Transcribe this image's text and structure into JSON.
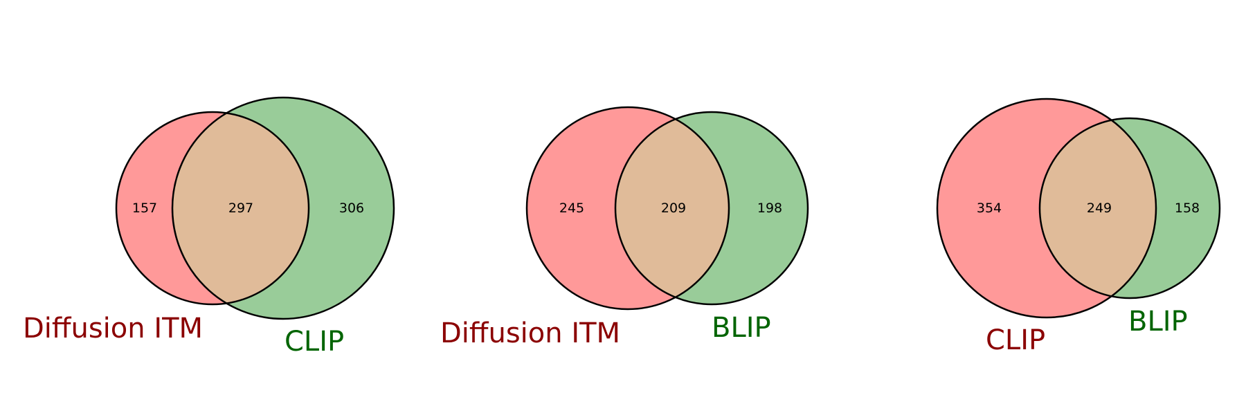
{
  "colors": {
    "left_set_fill": "#ff9999",
    "right_set_fill": "#99cc99",
    "overlap_fill": "#e0bb99",
    "left_label_color": "#8b0000",
    "right_label_color": "#006400"
  },
  "venns": [
    {
      "left_set": {
        "name": "Diffusion ITM",
        "only_count": "157"
      },
      "overlap_count": "297",
      "right_set": {
        "name": "CLIP",
        "only_count": "306"
      }
    },
    {
      "left_set": {
        "name": "Diffusion ITM",
        "only_count": "245"
      },
      "overlap_count": "209",
      "right_set": {
        "name": "BLIP",
        "only_count": "198"
      }
    },
    {
      "left_set": {
        "name": "CLIP",
        "only_count": "354"
      },
      "overlap_count": "249",
      "right_set": {
        "name": "BLIP",
        "only_count": "158"
      }
    }
  ]
}
